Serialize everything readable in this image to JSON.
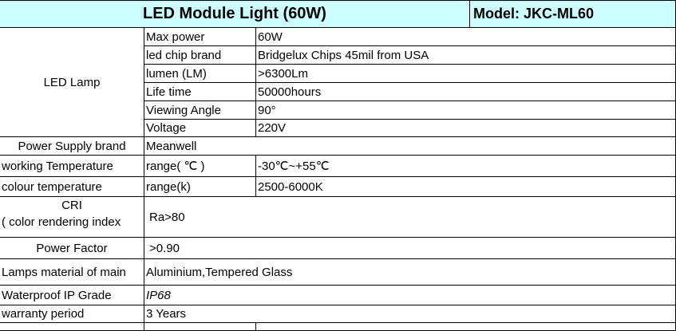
{
  "header": {
    "title": "LED Module Light (60W)",
    "model": "Model: JKC-ML60",
    "background": "#ccffff"
  },
  "led_lamp": {
    "label": "LED Lamp",
    "rows": [
      {
        "name": "Max power",
        "value": "60W"
      },
      {
        "name": "led chip brand",
        "value": "Bridgelux Chips 45mil from USA"
      },
      {
        "name": "lumen (LM)",
        "value": ">6300Lm"
      },
      {
        "name": "Life time",
        "value": "50000hours"
      },
      {
        "name": "Viewing Angle",
        "value": "90°"
      },
      {
        "name": "Voltage",
        "value": "220V"
      }
    ]
  },
  "power_supply": {
    "label": "Power Supply brand",
    "value": "Meanwell"
  },
  "working_temp": {
    "label": "working Temperature",
    "unit": "range( ℃ )",
    "value": "-30℃~+55℃"
  },
  "colour_temp": {
    "label": "colour temperature",
    "unit": "range(k)",
    "value": "2500-6000K"
  },
  "cri": {
    "label_line1": "CRI",
    "label_line2": "( color rendering index",
    "value": "Ra>80"
  },
  "power_factor": {
    "label": "Power Factor",
    "value": ">0.90"
  },
  "material": {
    "label": "Lamps material of main",
    "value": "Aluminium,Tempered Glass"
  },
  "waterproof": {
    "label": "Waterproof IP Grade",
    "value": "IP68"
  },
  "warranty": {
    "label": "warranty period",
    "value": "3 Years"
  }
}
